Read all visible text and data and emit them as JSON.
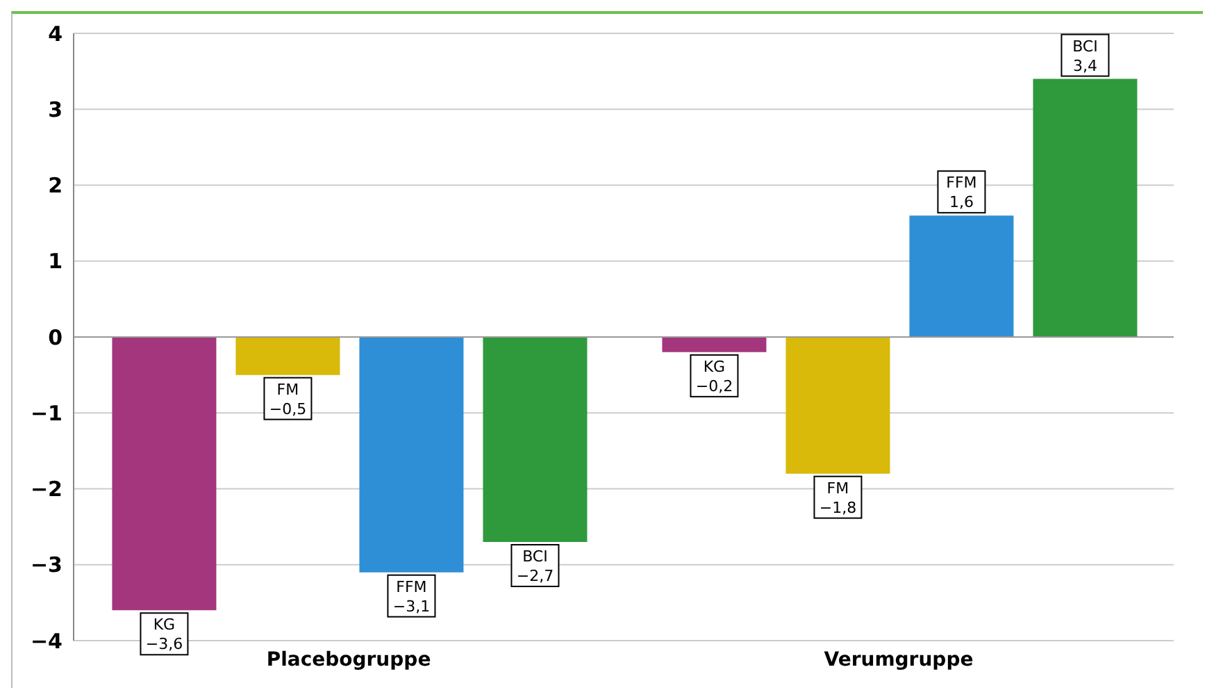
{
  "chart_data": {
    "type": "bar",
    "categories": [
      "Placebogruppe",
      "Verumgruppe"
    ],
    "series": [
      {
        "name": "KG",
        "color": "#a3367d",
        "values": [
          -3.6,
          -0.2
        ],
        "value_labels": [
          "−3,6",
          "−0,2"
        ]
      },
      {
        "name": "FM",
        "color": "#d9b90a",
        "values": [
          -0.5,
          -1.8
        ],
        "value_labels": [
          "−0,5",
          "−1,8"
        ]
      },
      {
        "name": "FFM",
        "color": "#2f8fd6",
        "values": [
          -3.1,
          1.6
        ],
        "value_labels": [
          "−3,1",
          "1,6"
        ]
      },
      {
        "name": "BCI",
        "color": "#2e9a3c",
        "values": [
          -2.7,
          3.4
        ],
        "value_labels": [
          "−2,7",
          "3,4"
        ]
      }
    ],
    "ylim": [
      -4,
      4
    ],
    "yticks": [
      {
        "value": -4,
        "label": "−4"
      },
      {
        "value": -3,
        "label": "−3"
      },
      {
        "value": -2,
        "label": "−2"
      },
      {
        "value": -1,
        "label": "−1"
      },
      0,
      1,
      2,
      3,
      4
    ],
    "grid": "y",
    "legend": false
  }
}
